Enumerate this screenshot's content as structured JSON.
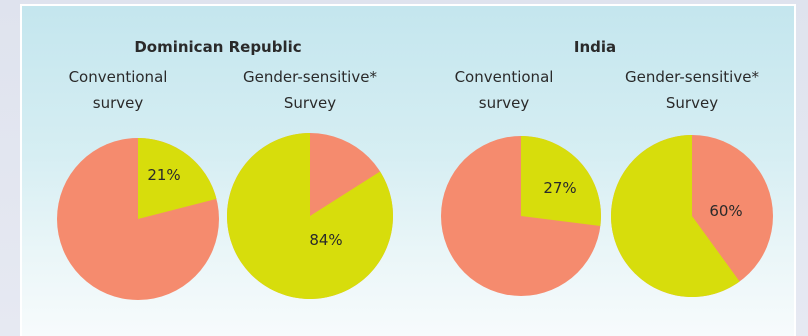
{
  "chart_data": [
    {
      "type": "pie",
      "title": "Dominican Republic",
      "pies": [
        {
          "label": [
            "Conventional",
            "survey"
          ],
          "highlight_percent": 21,
          "value_label": "21%"
        },
        {
          "label": [
            "Gender-sensitive*",
            "Survey"
          ],
          "highlight_percent": 84,
          "value_label": "84%"
        }
      ]
    },
    {
      "type": "pie",
      "title": "India",
      "pies": [
        {
          "label": [
            "Conventional",
            "survey"
          ],
          "highlight_percent": 27,
          "value_label": "27%"
        },
        {
          "label": [
            "Gender-sensitive*",
            "Survey"
          ],
          "highlight_percent": 60,
          "value_label": "60%"
        }
      ]
    }
  ],
  "colors": {
    "highlight": "#d7dd0c",
    "remainder": "#f58b6e",
    "text": "#2a2a2a"
  }
}
